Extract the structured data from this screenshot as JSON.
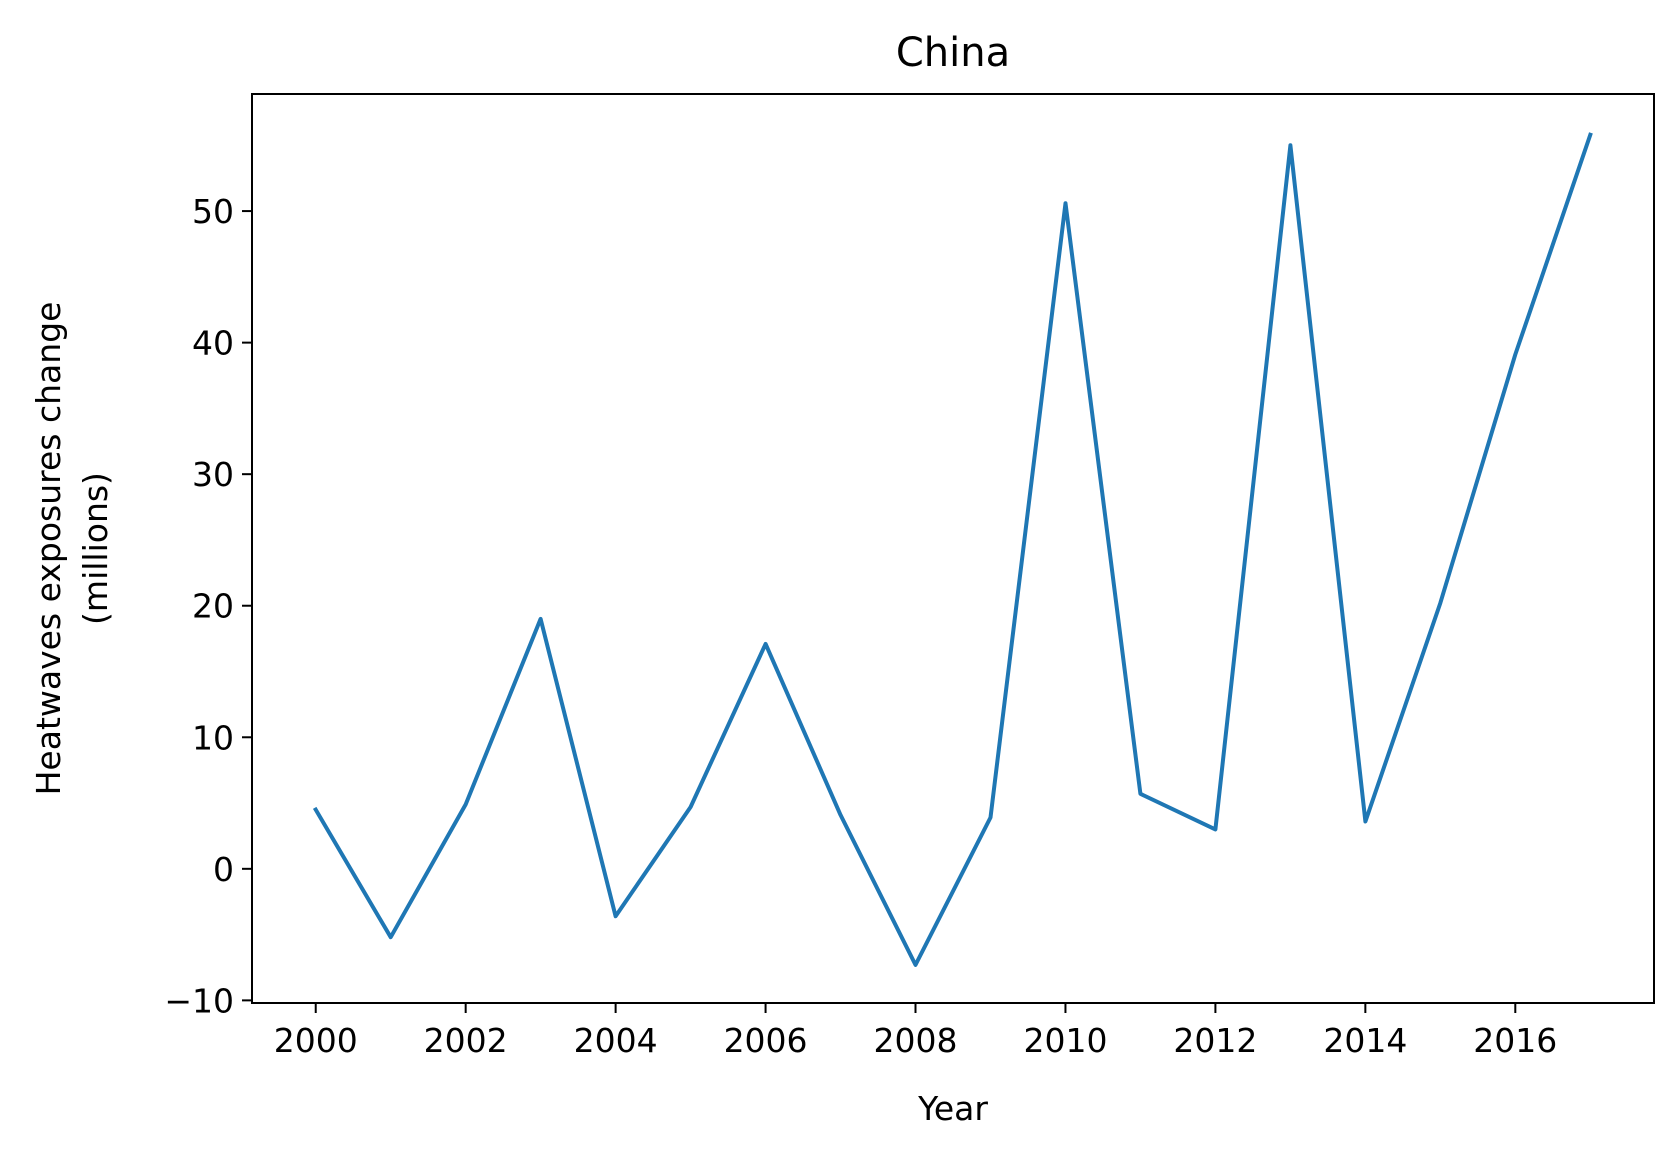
{
  "chart_data": {
    "type": "line",
    "title": "China",
    "xlabel": "Year",
    "ylabel_lines": [
      "Heatwaves exposures change",
      "(millions)"
    ],
    "xlim": [
      1999.15,
      2017.85
    ],
    "ylim": [
      -10.2,
      58.9
    ],
    "xticks": [
      2000,
      2002,
      2004,
      2006,
      2008,
      2010,
      2012,
      2014,
      2016
    ],
    "xtick_labels": [
      "2000",
      "2002",
      "2004",
      "2006",
      "2008",
      "2010",
      "2012",
      "2014",
      "2016"
    ],
    "yticks": [
      -10,
      0,
      10,
      20,
      30,
      40,
      50
    ],
    "ytick_labels": [
      "−10",
      "0",
      "10",
      "20",
      "30",
      "40",
      "50"
    ],
    "grid": false,
    "legend": "none",
    "series": [
      {
        "color": "#1f77b4",
        "x": [
          2000,
          2001,
          2002,
          2003,
          2004,
          2005,
          2006,
          2007,
          2008,
          2009,
          2010,
          2011,
          2012,
          2013,
          2014,
          2015,
          2016,
          2017
        ],
        "y": [
          4.5,
          -5.2,
          4.9,
          19.0,
          -3.6,
          4.7,
          17.1,
          4.1,
          -7.3,
          3.9,
          50.6,
          5.7,
          3.0,
          55.0,
          3.6,
          20.2,
          39.1,
          55.8
        ]
      }
    ]
  }
}
